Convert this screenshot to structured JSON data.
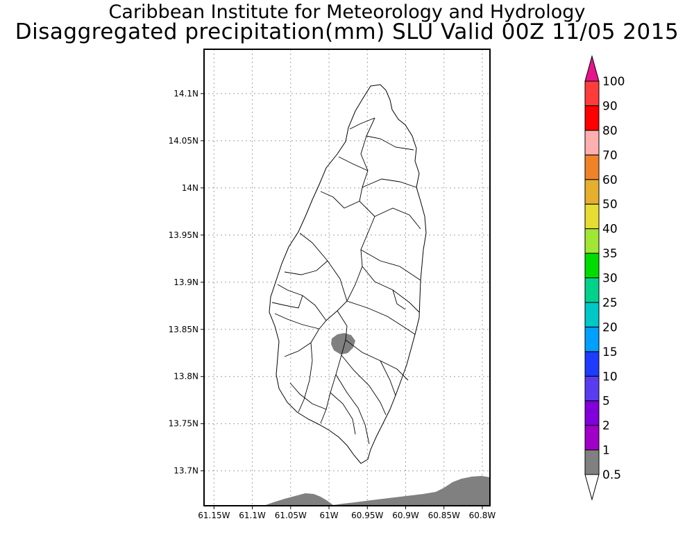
{
  "title": {
    "line1": "Caribbean Institute for Meteorology and Hydrology",
    "line2": "Disaggregated precipitation(mm) SLU Valid 00Z 11/05 2015"
  },
  "map": {
    "lon_range": [
      -61.163,
      -60.79
    ],
    "lat_range": [
      13.663,
      14.147
    ],
    "lon_ticks": [
      {
        "value": -61.15,
        "label": "61.15W"
      },
      {
        "value": -61.1,
        "label": "61.1W"
      },
      {
        "value": -61.05,
        "label": "61.05W"
      },
      {
        "value": -61.0,
        "label": "61W"
      },
      {
        "value": -60.95,
        "label": "60.95W"
      },
      {
        "value": -60.9,
        "label": "60.9W"
      },
      {
        "value": -60.85,
        "label": "60.85W"
      },
      {
        "value": -60.8,
        "label": "60.8W"
      }
    ],
    "lat_ticks": [
      {
        "value": 14.1,
        "label": "14.1N"
      },
      {
        "value": 14.05,
        "label": "14.05N"
      },
      {
        "value": 14.0,
        "label": "14N"
      },
      {
        "value": 13.95,
        "label": "13.95N"
      },
      {
        "value": 13.9,
        "label": "13.9N"
      },
      {
        "value": 13.85,
        "label": "13.85N"
      },
      {
        "value": 13.8,
        "label": "13.8N"
      },
      {
        "value": 13.75,
        "label": "13.75N"
      },
      {
        "value": 13.7,
        "label": "13.7N"
      }
    ],
    "grid": true,
    "colors": {
      "land_fill": "#ffffff",
      "border": "#000000",
      "grid": "#a0a0a0",
      "precip": "#808080"
    }
  },
  "colorbar": {
    "levels": [
      {
        "label": "0.5",
        "color": "#ffffff"
      },
      {
        "label": "1",
        "color": "#808080"
      },
      {
        "label": "2",
        "color": "#a000c8"
      },
      {
        "label": "5",
        "color": "#8200dc"
      },
      {
        "label": "10",
        "color": "#5a3cf0"
      },
      {
        "label": "15",
        "color": "#1e3cff"
      },
      {
        "label": "20",
        "color": "#00a0ff"
      },
      {
        "label": "25",
        "color": "#00c8c8"
      },
      {
        "label": "30",
        "color": "#00d28c"
      },
      {
        "label": "35",
        "color": "#00dc00"
      },
      {
        "label": "40",
        "color": "#a0e632"
      },
      {
        "label": "50",
        "color": "#e6dc32"
      },
      {
        "label": "60",
        "color": "#e6af2d"
      },
      {
        "label": "70",
        "color": "#f08228"
      },
      {
        "label": "80",
        "color": "#ffafaf"
      },
      {
        "label": "90",
        "color": "#ff0000"
      },
      {
        "label": "100",
        "color": "#ff3c3c"
      }
    ],
    "top_arrow_color": "#e6148c"
  }
}
